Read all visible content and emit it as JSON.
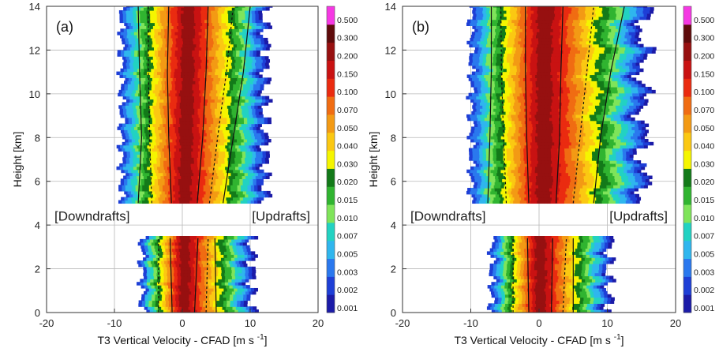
{
  "chart_data": [
    {
      "type": "heatmap",
      "panel_label": "(a)",
      "xlabel": "T3 Vertical Velocity - CFAD [m s",
      "xlabel_sup": "-1",
      "xlabel_close": "]",
      "ylabel": "Height [km]",
      "xlim": [
        -20,
        20
      ],
      "ylim": [
        0,
        14
      ],
      "xticks": [
        "-20",
        "-10",
        "0",
        "10",
        "20"
      ],
      "yticks": [
        "0",
        "2",
        "4",
        "6",
        "8",
        "10",
        "12",
        "14"
      ],
      "grid": true,
      "annotations": [
        "[Downdrafts]",
        "[Updrafts]"
      ],
      "colorbar": [
        "0.001",
        "0.002",
        "0.003",
        "0.005",
        "0.007",
        "0.010",
        "0.015",
        "0.020",
        "0.030",
        "0.040",
        "0.050",
        "0.070",
        "0.100",
        "0.150",
        "0.200",
        "0.300",
        "0.500"
      ],
      "layers": [
        {
          "z": [
            5.0,
            14.0
          ],
          "min": -9,
          "max": 12
        },
        {
          "z": [
            0.0,
            3.4
          ],
          "min": -6,
          "max": 10
        }
      ],
      "lines": [
        {
          "style": "solid",
          "points": [
            [
              -1.5,
              0
            ],
            [
              -1.8,
              3.4
            ],
            [
              -1.6,
              5
            ],
            [
              -2.0,
              8
            ],
            [
              -2.2,
              11
            ],
            [
              -2.0,
              14
            ]
          ]
        },
        {
          "style": "solid",
          "points": [
            [
              1.8,
              0
            ],
            [
              2.3,
              3.4
            ],
            [
              2.2,
              5
            ],
            [
              3.0,
              8
            ],
            [
              3.5,
              11
            ],
            [
              3.8,
              14
            ]
          ]
        },
        {
          "style": "solid",
          "points": [
            [
              -6.5,
              5
            ],
            [
              -6.0,
              8
            ],
            [
              -6.3,
              11
            ],
            [
              -6.5,
              14
            ]
          ]
        },
        {
          "style": "solid",
          "points": [
            [
              5.0,
              0
            ],
            [
              4.8,
              3.4
            ],
            [
              6.0,
              5
            ],
            [
              7.5,
              8
            ],
            [
              9.0,
              11
            ],
            [
              10.0,
              14
            ]
          ]
        },
        {
          "style": "dashed",
          "points": [
            [
              -3.5,
              0
            ],
            [
              -3.5,
              3.4
            ],
            [
              -4.5,
              5
            ],
            [
              -4.8,
              8
            ],
            [
              -5.0,
              11
            ],
            [
              -5.0,
              14
            ]
          ]
        },
        {
          "style": "dashed",
          "points": [
            [
              3.5,
              0
            ],
            [
              3.8,
              3.4
            ],
            [
              4.0,
              5
            ],
            [
              5.2,
              8
            ],
            [
              6.5,
              11
            ],
            [
              7.5,
              14
            ]
          ]
        }
      ]
    },
    {
      "type": "heatmap",
      "panel_label": "(b)",
      "xlabel": "T3 Vertical Velocity - CFAD [m s",
      "xlabel_sup": "-1",
      "xlabel_close": "]",
      "ylabel": "",
      "xlim": [
        -20,
        20
      ],
      "ylim": [
        0,
        14
      ],
      "xticks": [
        "-20",
        "-10",
        "0",
        "10",
        "20"
      ],
      "yticks": [
        "0",
        "2",
        "4",
        "6",
        "8",
        "10",
        "12",
        "14"
      ],
      "grid": true,
      "annotations": [
        "[Downdrafts]",
        "[Updrafts]"
      ],
      "colorbar": [
        "0.001",
        "0.002",
        "0.003",
        "0.005",
        "0.007",
        "0.010",
        "0.015",
        "0.020",
        "0.030",
        "0.040",
        "0.050",
        "0.070",
        "0.100",
        "0.150",
        "0.200",
        "0.300",
        "0.500"
      ],
      "layers": [
        {
          "z": [
            5.0,
            14.0
          ],
          "min": -10,
          "max": 15
        },
        {
          "z": [
            0.0,
            3.4
          ],
          "min": -7,
          "max": 10
        }
      ],
      "lines": [
        {
          "style": "solid",
          "points": [
            [
              -1.5,
              0
            ],
            [
              -1.7,
              3.4
            ],
            [
              -1.5,
              5
            ],
            [
              -1.8,
              8
            ],
            [
              -2.0,
              11
            ],
            [
              -2.0,
              14
            ]
          ]
        },
        {
          "style": "solid",
          "points": [
            [
              1.8,
              0
            ],
            [
              2.0,
              3.4
            ],
            [
              2.5,
              5
            ],
            [
              3.0,
              8
            ],
            [
              3.2,
              11
            ],
            [
              3.5,
              14
            ]
          ]
        },
        {
          "style": "solid",
          "points": [
            [
              -7.5,
              5
            ],
            [
              -7.2,
              8
            ],
            [
              -7.0,
              11
            ],
            [
              -7.0,
              14
            ]
          ]
        },
        {
          "style": "solid",
          "points": [
            [
              5.0,
              0
            ],
            [
              5.0,
              3.4
            ],
            [
              8.0,
              5
            ],
            [
              9.0,
              8
            ],
            [
              10.5,
              11
            ],
            [
              12.5,
              14
            ]
          ]
        },
        {
          "style": "dashed",
          "points": [
            [
              -3.8,
              0
            ],
            [
              -3.8,
              3.4
            ],
            [
              -4.8,
              5
            ],
            [
              -5.2,
              8
            ],
            [
              -5.5,
              11
            ],
            [
              -5.6,
              14
            ]
          ]
        },
        {
          "style": "dashed",
          "points": [
            [
              3.5,
              0
            ],
            [
              4.0,
              3.4
            ],
            [
              5.0,
              5
            ],
            [
              6.0,
              8
            ],
            [
              7.0,
              11
            ],
            [
              8.0,
              14
            ]
          ]
        }
      ]
    }
  ],
  "colors": {
    "colorbar": [
      "#1b1ba8",
      "#1e3fd6",
      "#2a78ee",
      "#2fb6ee",
      "#22d2c2",
      "#7fe45a",
      "#30b430",
      "#137a19",
      "#f5f500",
      "#fbc812",
      "#f39a14",
      "#f06c12",
      "#ea2b10",
      "#c91212",
      "#971010",
      "#5e0b0b",
      "#f538e3"
    ]
  }
}
